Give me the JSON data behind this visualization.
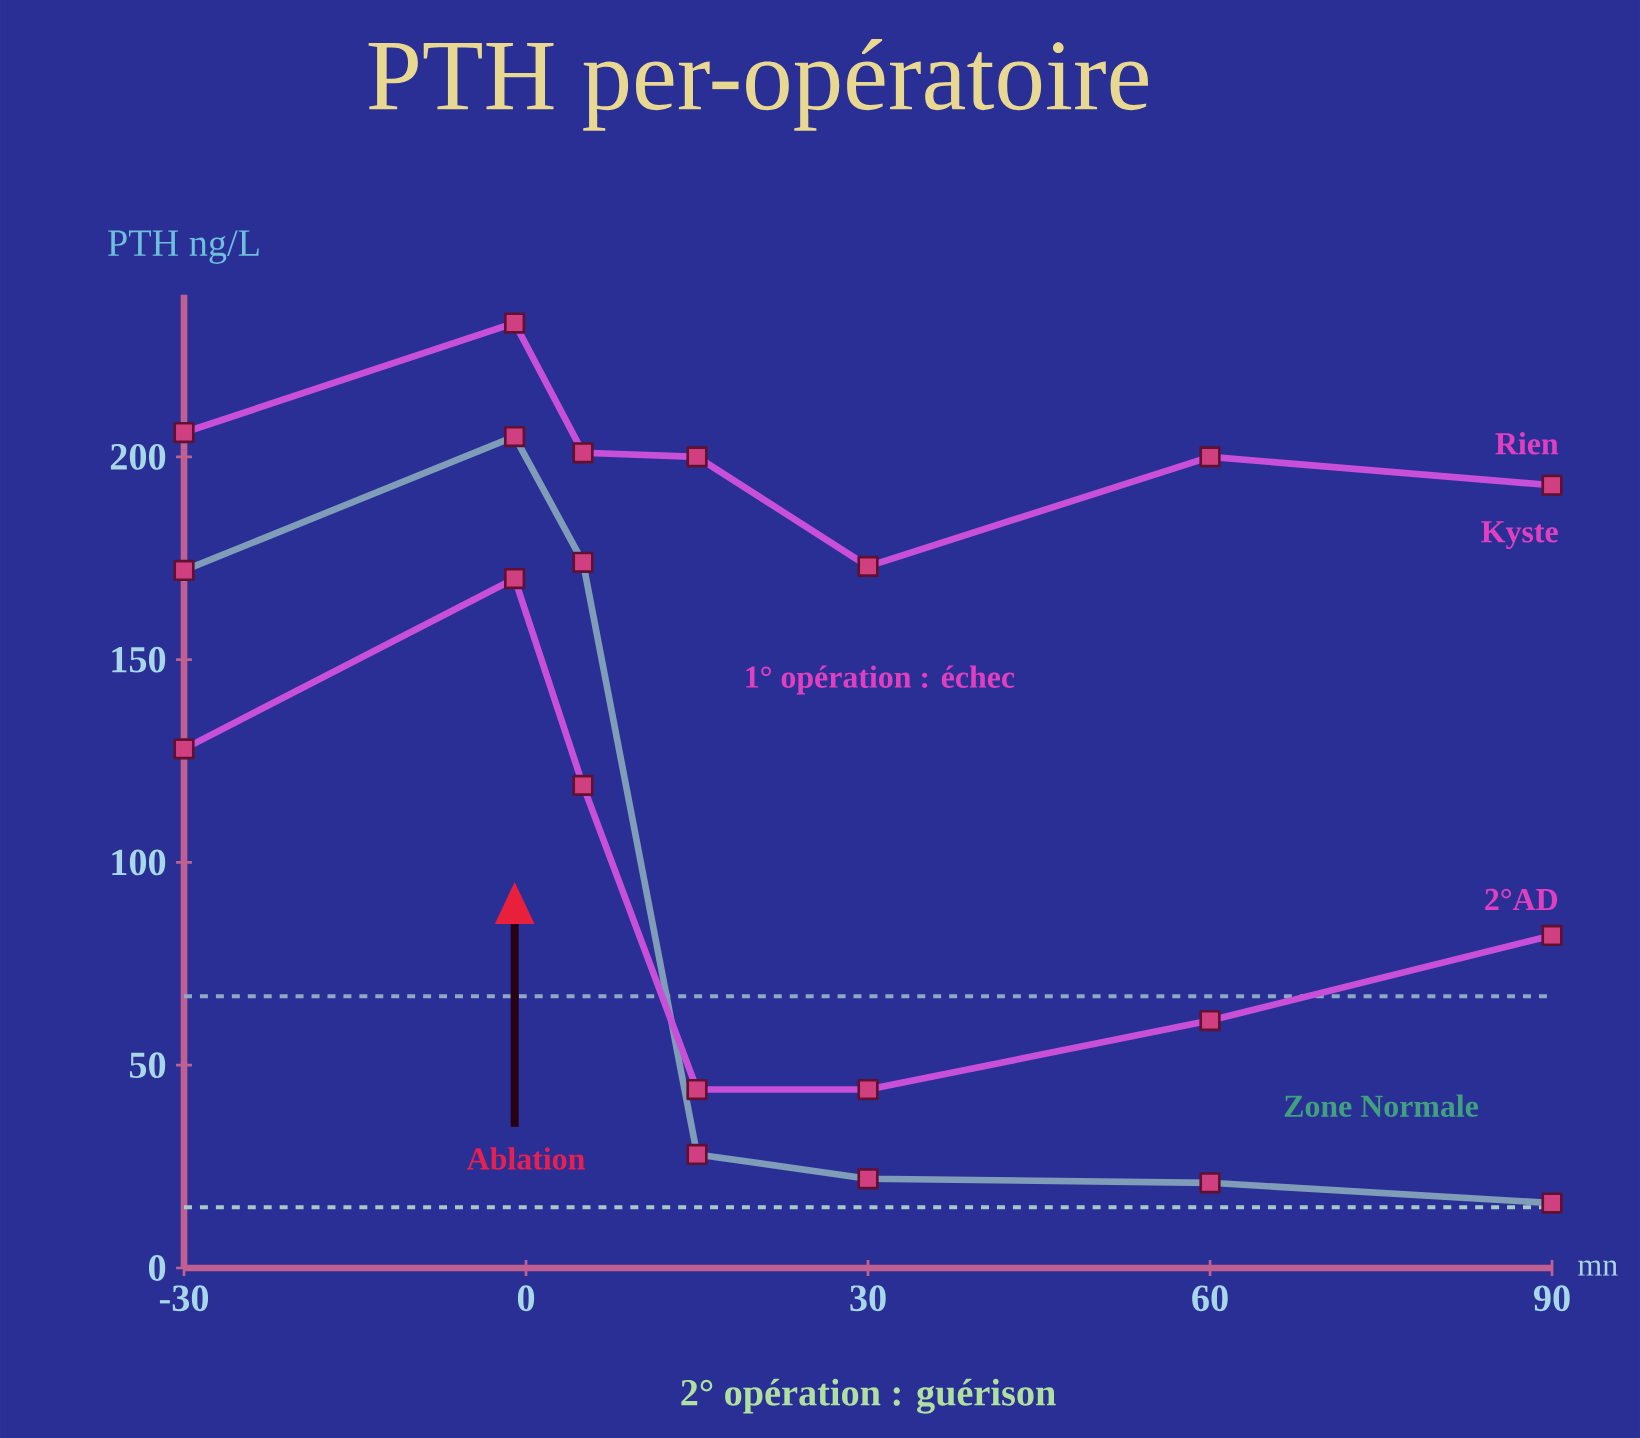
{
  "chart_data": {
    "type": "line",
    "title": "PTH per-opératoire",
    "ylabel": "PTH ng/L",
    "xlabel": "mn",
    "x": [
      -30,
      -1,
      5,
      15,
      30,
      60,
      90
    ],
    "series": [
      {
        "color": "#c850d8",
        "values": [
          206,
          233,
          201,
          200,
          173,
          200,
          193
        ]
      },
      {
        "color": "#7f9cb8",
        "values": [
          172,
          205,
          174,
          28,
          22,
          21,
          16
        ]
      },
      {
        "color": "#c850d8",
        "values": [
          128,
          170,
          119,
          44,
          44,
          61,
          82
        ]
      }
    ],
    "xlim": [
      -30,
      90
    ],
    "ylim": [
      0,
      240
    ],
    "xticks": [
      -30,
      0,
      30,
      60,
      90
    ],
    "yticks": [
      0,
      50,
      100,
      150,
      200
    ],
    "marker": "square",
    "line_style": "solid",
    "grid": false,
    "ref_lines": [
      {
        "axis": "y",
        "value": 67,
        "color": "#8fa8c8",
        "line_style": "dashed"
      },
      {
        "axis": "y",
        "value": 15,
        "color": "#a8c8c8",
        "line_style": "dashed"
      }
    ],
    "annotations": [
      "Rien",
      "Kyste",
      "2°AD",
      "1° opération : échec",
      "Zone Normale",
      "Ablation",
      "2° opération : guérison"
    ]
  }
}
